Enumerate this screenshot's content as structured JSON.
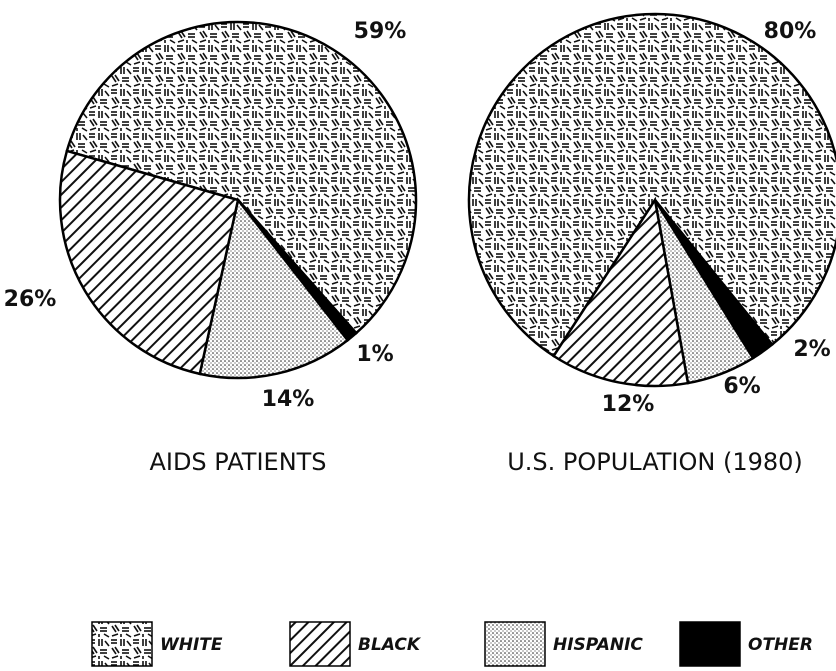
{
  "chart_data": [
    {
      "type": "pie",
      "title": "AIDS PATIENTS",
      "categories": [
        "WHITE",
        "OTHER",
        "HISPANIC",
        "BLACK"
      ],
      "values": [
        59,
        1,
        14,
        26
      ],
      "value_labels": [
        "59%",
        "1%",
        "14%",
        "26%"
      ]
    },
    {
      "type": "pie",
      "title": "U.S. POPULATION (1980)",
      "categories": [
        "WHITE",
        "OTHER",
        "HISPANIC",
        "BLACK"
      ],
      "values": [
        80,
        2,
        6,
        12
      ],
      "value_labels": [
        "80%",
        "2%",
        "6%",
        "12%"
      ]
    }
  ]
}
